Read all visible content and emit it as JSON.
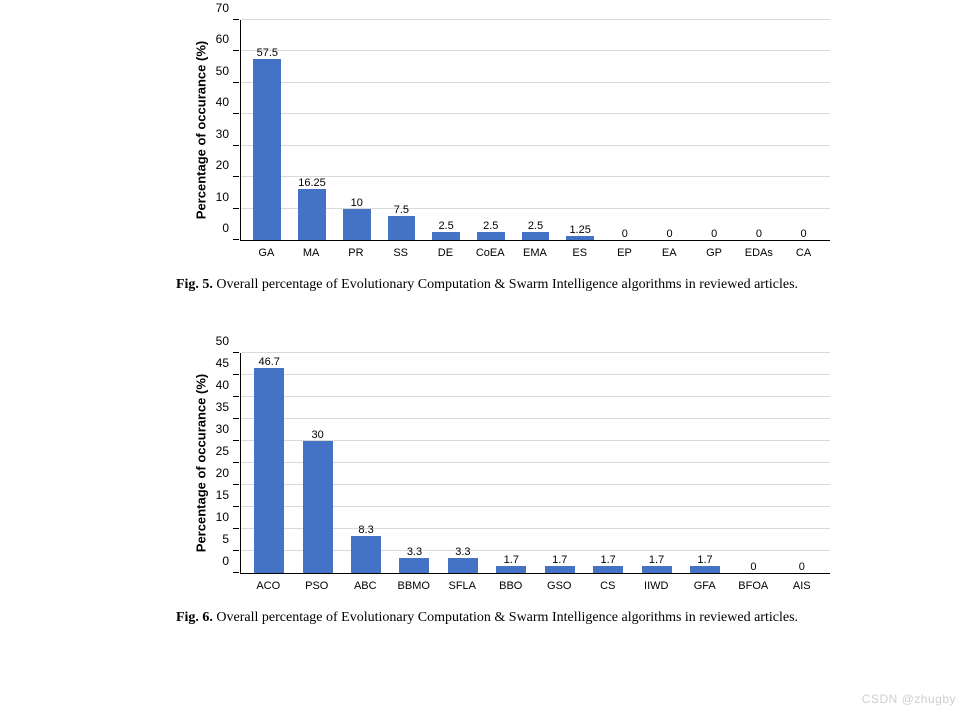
{
  "figures": [
    {
      "id": "fig5",
      "chart": {
        "type": "bar",
        "ylim_max": 70,
        "ytick_step": 10,
        "y_axis_title": "Percentage of occurance (%)",
        "grid_color": "#d9d9d9",
        "bar_color": "#4472c4",
        "background_color": "#ffffff",
        "label_fontsize": 12,
        "value_fontsize": 11,
        "bars": [
          {
            "label": "GA",
            "value": 57.5,
            "display": "57.5"
          },
          {
            "label": "MA",
            "value": 16.25,
            "display": "16.25"
          },
          {
            "label": "PR",
            "value": 10,
            "display": "10"
          },
          {
            "label": "SS",
            "value": 7.5,
            "display": "7.5"
          },
          {
            "label": "DE",
            "value": 2.5,
            "display": "2.5"
          },
          {
            "label": "CoEA",
            "value": 2.5,
            "display": "2.5"
          },
          {
            "label": "EMA",
            "value": 2.5,
            "display": "2.5"
          },
          {
            "label": "ES",
            "value": 1.25,
            "display": "1.25"
          },
          {
            "label": "EP",
            "value": 0,
            "display": "0"
          },
          {
            "label": "EA",
            "value": 0,
            "display": "0"
          },
          {
            "label": "GP",
            "value": 0,
            "display": "0"
          },
          {
            "label": "EDAs",
            "value": 0,
            "display": "0"
          },
          {
            "label": "CA",
            "value": 0,
            "display": "0"
          }
        ]
      },
      "caption_prefix": "Fig. 5.",
      "caption_text": " Overall percentage of Evolutionary Computation & Swarm Intelligence algorithms in reviewed articles."
    },
    {
      "id": "fig6",
      "chart": {
        "type": "bar",
        "ylim_max": 50,
        "ytick_step": 5,
        "y_axis_title": "Percentage of occurance (%)",
        "grid_color": "#d9d9d9",
        "bar_color": "#4472c4",
        "background_color": "#ffffff",
        "label_fontsize": 12,
        "value_fontsize": 11,
        "bars": [
          {
            "label": "ACO",
            "value": 46.7,
            "display": "46.7"
          },
          {
            "label": "PSO",
            "value": 30,
            "display": "30"
          },
          {
            "label": "ABC",
            "value": 8.3,
            "display": "8.3"
          },
          {
            "label": "BBMO",
            "value": 3.3,
            "display": "3.3"
          },
          {
            "label": "SFLA",
            "value": 3.3,
            "display": "3.3"
          },
          {
            "label": "BBO",
            "value": 1.7,
            "display": "1.7"
          },
          {
            "label": "GSO",
            "value": 1.7,
            "display": "1.7"
          },
          {
            "label": "CS",
            "value": 1.7,
            "display": "1.7"
          },
          {
            "label": "IIWD",
            "value": 1.7,
            "display": "1.7"
          },
          {
            "label": "GFA",
            "value": 1.7,
            "display": "1.7"
          },
          {
            "label": "BFOA",
            "value": 0,
            "display": "0"
          },
          {
            "label": "AIS",
            "value": 0,
            "display": "0"
          }
        ]
      },
      "caption_prefix": "Fig. 6.",
      "caption_text": " Overall percentage of Evolutionary Computation & Swarm Intelligence algorithms in reviewed articles."
    }
  ],
  "watermark": "CSDN @zhugby"
}
